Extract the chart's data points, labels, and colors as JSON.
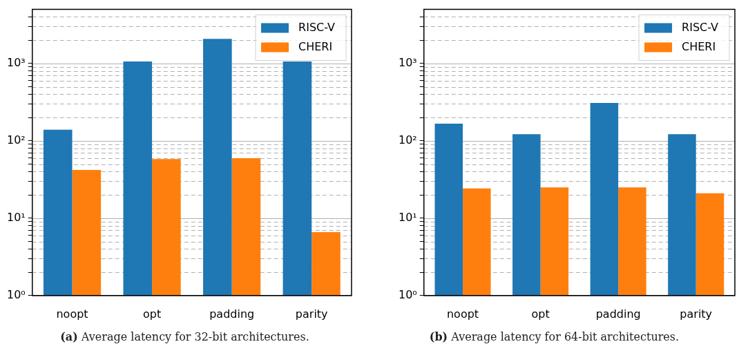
{
  "chart_data": [
    {
      "type": "bar",
      "title": "(a) Average latency for 32-bit architectures.",
      "categories": [
        "noopt",
        "opt",
        "padding",
        "parity"
      ],
      "series": [
        {
          "name": "RISC-V",
          "color": "#1f77b4",
          "values": [
            139,
            1060,
            2080,
            1060
          ]
        },
        {
          "name": "CHERI",
          "color": "#ff7f0e",
          "values": [
            42,
            58,
            59.5,
            6.6
          ]
        }
      ],
      "log": true,
      "ylim": [
        1,
        5000
      ],
      "yticks": [
        {
          "value": 1,
          "label": "10⁰"
        },
        {
          "value": 2,
          "label": null
        },
        {
          "value": 3,
          "label": null
        },
        {
          "value": 4,
          "label": null
        },
        {
          "value": 5,
          "label": null
        },
        {
          "value": 6,
          "label": null
        },
        {
          "value": 7,
          "label": null
        },
        {
          "value": 8,
          "label": null
        },
        {
          "value": 9,
          "label": null
        },
        {
          "value": 10,
          "label": "10¹"
        },
        {
          "value": 20,
          "label": null
        },
        {
          "value": 30,
          "label": null
        },
        {
          "value": 40,
          "label": null
        },
        {
          "value": 50,
          "label": null
        },
        {
          "value": 60,
          "label": null
        },
        {
          "value": 70,
          "label": null
        },
        {
          "value": 80,
          "label": null
        },
        {
          "value": 90,
          "label": null
        },
        {
          "value": 100,
          "label": "10²"
        },
        {
          "value": 200,
          "label": null
        },
        {
          "value": 300,
          "label": null
        },
        {
          "value": 400,
          "label": null
        },
        {
          "value": 500,
          "label": null
        },
        {
          "value": 600,
          "label": null
        },
        {
          "value": 700,
          "label": null
        },
        {
          "value": 800,
          "label": null
        },
        {
          "value": 900,
          "label": null
        },
        {
          "value": 1000,
          "label": "10³"
        },
        {
          "value": 2000,
          "label": null
        },
        {
          "value": 3000,
          "label": null
        },
        {
          "value": 4000,
          "label": null
        }
      ],
      "grid": true,
      "legend": "top right"
    },
    {
      "type": "bar",
      "title": "(b) Average latency for 64-bit architectures.",
      "categories": [
        "noopt",
        "opt",
        "padding",
        "parity"
      ],
      "series": [
        {
          "name": "RISC-V",
          "color": "#1f77b4",
          "values": [
            167,
            122,
            309,
            122
          ]
        },
        {
          "name": "CHERI",
          "color": "#ff7f0e",
          "values": [
            24.3,
            25,
            25,
            21
          ]
        }
      ],
      "log": true,
      "ylim": [
        1,
        5000
      ],
      "yticks": [
        {
          "value": 1,
          "label": "10⁰"
        },
        {
          "value": 2,
          "label": null
        },
        {
          "value": 3,
          "label": null
        },
        {
          "value": 4,
          "label": null
        },
        {
          "value": 5,
          "label": null
        },
        {
          "value": 6,
          "label": null
        },
        {
          "value": 7,
          "label": null
        },
        {
          "value": 8,
          "label": null
        },
        {
          "value": 9,
          "label": null
        },
        {
          "value": 10,
          "label": "10¹"
        },
        {
          "value": 20,
          "label": null
        },
        {
          "value": 30,
          "label": null
        },
        {
          "value": 40,
          "label": null
        },
        {
          "value": 50,
          "label": null
        },
        {
          "value": 60,
          "label": null
        },
        {
          "value": 70,
          "label": null
        },
        {
          "value": 80,
          "label": null
        },
        {
          "value": 90,
          "label": null
        },
        {
          "value": 100,
          "label": "10²"
        },
        {
          "value": 200,
          "label": null
        },
        {
          "value": 300,
          "label": null
        },
        {
          "value": 400,
          "label": null
        },
        {
          "value": 500,
          "label": null
        },
        {
          "value": 600,
          "label": null
        },
        {
          "value": 700,
          "label": null
        },
        {
          "value": 800,
          "label": null
        },
        {
          "value": 900,
          "label": null
        },
        {
          "value": 1000,
          "label": "10³"
        },
        {
          "value": 2000,
          "label": null
        },
        {
          "value": 3000,
          "label": null
        },
        {
          "value": 4000,
          "label": null
        }
      ],
      "grid": true,
      "legend": "top right"
    }
  ]
}
